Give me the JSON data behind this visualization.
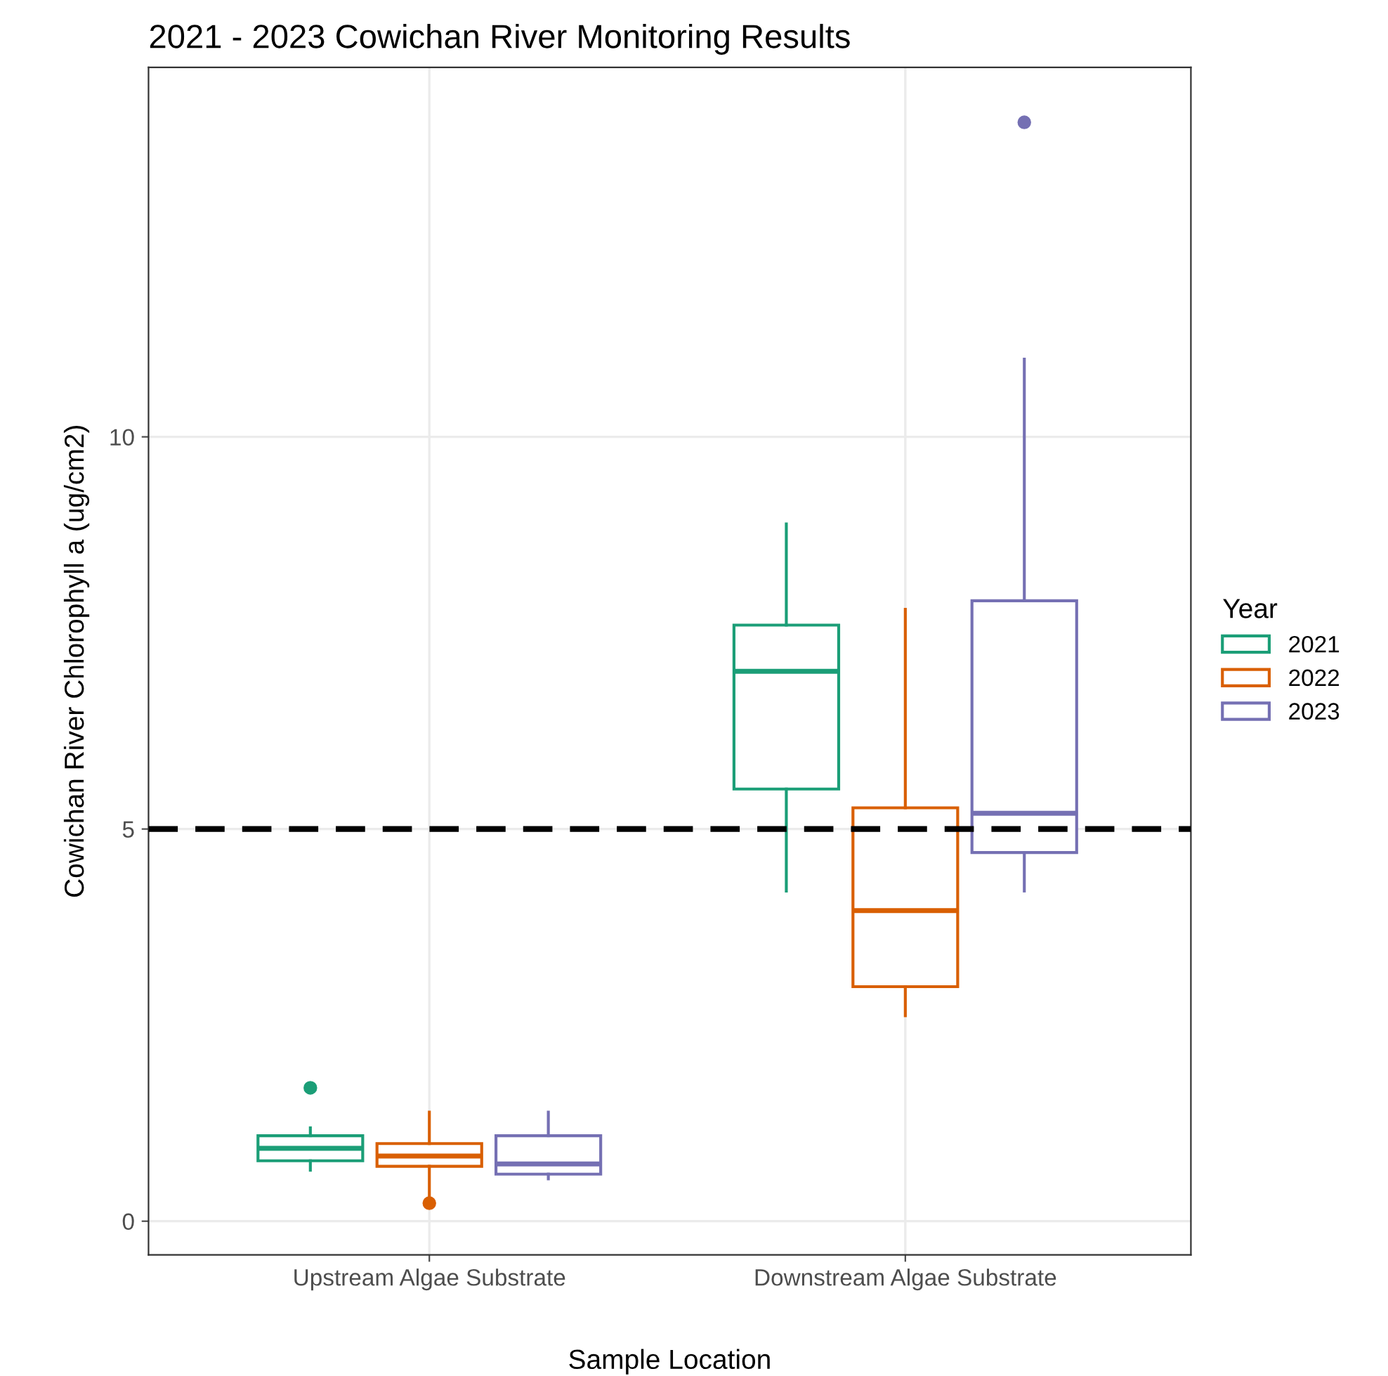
{
  "chart_data": {
    "type": "box",
    "title": "2021 - 2023 Cowichan River Monitoring Results",
    "xlabel": "Sample Location",
    "ylabel": "Cowichan River Chlorophyll a (ug/cm2)",
    "legend_title": "Year",
    "categories": [
      "Upstream Algae Substrate",
      "Downstream Algae Substrate"
    ],
    "series": [
      {
        "name": "2021",
        "color": "#1b9e77",
        "boxes": [
          {
            "low": 0.65,
            "q1": 0.77,
            "median": 0.93,
            "q3": 1.09,
            "high": 1.19,
            "outliers": [
              1.7
            ]
          },
          {
            "low": 4.21,
            "q1": 5.51,
            "median": 7.01,
            "q3": 7.6,
            "high": 8.89
          }
        ]
      },
      {
        "name": "2022",
        "color": "#d95f02",
        "boxes": [
          {
            "low": 0.3,
            "q1": 0.7,
            "median": 0.83,
            "q3": 0.99,
            "high": 1.39,
            "outliers": [
              0.23
            ]
          },
          {
            "low": 2.62,
            "q1": 2.99,
            "median": 3.96,
            "q3": 5.27,
            "high": 7.8
          }
        ]
      },
      {
        "name": "2023",
        "color": "#7570b3",
        "boxes": [
          {
            "low": 0.54,
            "q1": 0.6,
            "median": 0.73,
            "q3": 1.09,
            "high": 1.39
          },
          {
            "low": 4.21,
            "q1": 4.7,
            "median": 5.2,
            "q3": 7.91,
            "high": 10.99,
            "outliers": [
              14.01
            ]
          }
        ]
      }
    ],
    "ylim": [
      -0.43,
      14.71
    ],
    "yticks": [
      0,
      5,
      10
    ],
    "grid": true,
    "legend": "right",
    "ref_lines": [
      {
        "axis": "y",
        "value": 5,
        "color": "#000000",
        "line_style": "dashed"
      }
    ]
  }
}
